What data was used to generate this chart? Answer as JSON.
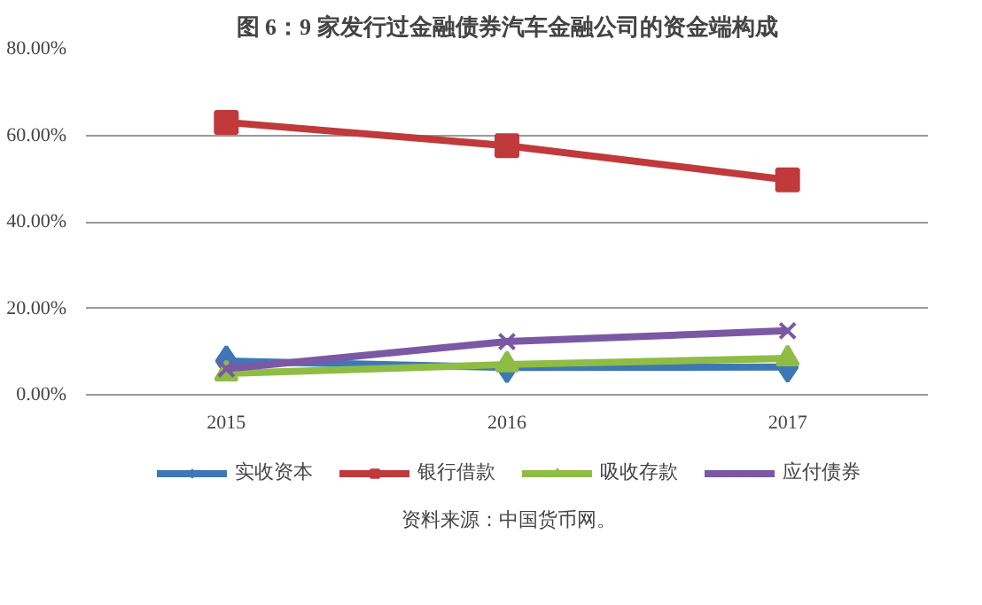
{
  "chart_data": {
    "type": "line",
    "title": "图 6：9 家发行过金融债券汽车金融公司的资金端构成",
    "categories": [
      "2015",
      "2016",
      "2017"
    ],
    "series": [
      {
        "name": "实收资本",
        "color": "#3e77b6",
        "marker": "diamond",
        "values": [
          7.8,
          6.3,
          6.4
        ]
      },
      {
        "name": "银行借款",
        "color": "#c0393b",
        "marker": "square",
        "values": [
          63.0,
          57.6,
          49.7
        ]
      },
      {
        "name": "吸收存款",
        "color": "#8fbc45",
        "marker": "triangle",
        "values": [
          4.9,
          7.0,
          8.4
        ]
      },
      {
        "name": "应付债券",
        "color": "#7b58a4",
        "marker": "x",
        "values": [
          6.0,
          12.3,
          14.8
        ]
      }
    ],
    "ylim": [
      0,
      80
    ],
    "yticks": [
      {
        "value": 0,
        "label": "0.00%"
      },
      {
        "value": 20,
        "label": "20.00%"
      },
      {
        "value": 40,
        "label": "40.00%"
      },
      {
        "value": 60,
        "label": "60.00%"
      },
      {
        "value": 80,
        "label": "80.00%"
      }
    ],
    "grid": "y",
    "legend": "bottom",
    "line_style": "solid",
    "annotations": [
      "资料来源：中国货币网。"
    ]
  }
}
